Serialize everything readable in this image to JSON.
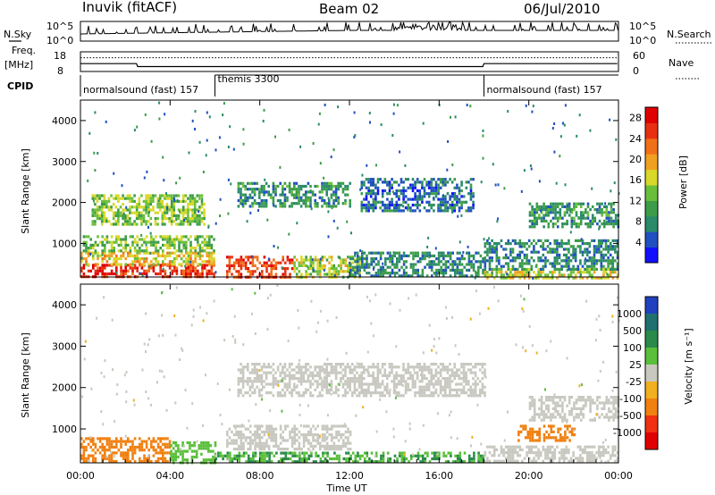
{
  "header": {
    "station": "Inuvik (fitACF)",
    "beam": "Beam 02",
    "date": "06/Jul/2010"
  },
  "panels": {
    "nsky_label": "N.Sky",
    "nsearch_label": "N.Search",
    "nsky_ticks": [
      "10^5",
      "10^0"
    ],
    "nsearch_ticks": [
      "10^5",
      "10^0"
    ],
    "freq_label": "Freq.",
    "freq_unit": "[MHz]",
    "freq_ticks": [
      "18",
      "8"
    ],
    "nave_label": "Nave",
    "nave_ticks": [
      "60",
      "0"
    ],
    "cpid_label": "CPID",
    "cpid_segments": [
      {
        "name": "normalsound (fast) 157",
        "start_hour": 0,
        "end_hour": 6
      },
      {
        "name": "themis 3300",
        "start_hour": 6,
        "end_hour": 18
      },
      {
        "name": "normalsound (fast) 157",
        "start_hour": 18,
        "end_hour": 24
      }
    ]
  },
  "chart_data": [
    {
      "type": "heatmap",
      "quantity": "power",
      "ylabel": "Slant Range [km]",
      "xlabel": "",
      "xlim": [
        0,
        24
      ],
      "ylim": [
        180,
        4500
      ],
      "yticks": [
        "1000",
        "2000",
        "3000",
        "4000"
      ],
      "colorbar": {
        "label": "Power [dB]",
        "ticks": [
          "4",
          "8",
          "12",
          "16",
          "20",
          "24",
          "28"
        ],
        "range": [
          0,
          30
        ],
        "colors": [
          "#1010ff",
          "#2050c0",
          "#2a8a6a",
          "#3c9c48",
          "#6abf3a",
          "#d8d82a",
          "#f0a020",
          "#f07018",
          "#e83010",
          "#e00000"
        ]
      },
      "regions": [
        {
          "x": [
            0.0,
            6.0
          ],
          "y": [
            180,
            500
          ],
          "value": 26
        },
        {
          "x": [
            0.0,
            6.0
          ],
          "y": [
            500,
            800
          ],
          "value": 18
        },
        {
          "x": [
            0.0,
            6.0
          ],
          "y": [
            800,
            1200
          ],
          "value": 13
        },
        {
          "x": [
            0.5,
            5.5
          ],
          "y": [
            1500,
            2200
          ],
          "value": 14
        },
        {
          "x": [
            6.5,
            9.5
          ],
          "y": [
            180,
            700
          ],
          "value": 25
        },
        {
          "x": [
            9.5,
            12.5
          ],
          "y": [
            180,
            700
          ],
          "value": 15
        },
        {
          "x": [
            7.0,
            12.0
          ],
          "y": [
            1900,
            2500
          ],
          "value": 9
        },
        {
          "x": [
            12.0,
            18.0
          ],
          "y": [
            180,
            800
          ],
          "value": 8
        },
        {
          "x": [
            12.5,
            17.5
          ],
          "y": [
            1800,
            2600
          ],
          "value": 6
        },
        {
          "x": [
            18.0,
            24.0
          ],
          "y": [
            180,
            400
          ],
          "value": 16
        },
        {
          "x": [
            18.0,
            24.0
          ],
          "y": [
            400,
            1100
          ],
          "value": 8
        },
        {
          "x": [
            20.0,
            24.0
          ],
          "y": [
            1400,
            2000
          ],
          "value": 9
        }
      ]
    },
    {
      "type": "heatmap",
      "quantity": "velocity",
      "ylabel": "Slant Range [km]",
      "xlabel": "Time UT",
      "xlim": [
        0,
        24
      ],
      "ylim": [
        180,
        4500
      ],
      "xticks": [
        "00:00",
        "04:00",
        "08:00",
        "12:00",
        "16:00",
        "20:00",
        "00:00"
      ],
      "yticks": [
        "1000",
        "2000",
        "3000",
        "4000"
      ],
      "colorbar": {
        "label": "Velocity [m s⁻¹]",
        "ticks": [
          "1000",
          "500",
          "100",
          "25",
          "-25",
          "-100",
          "-500",
          "-1000"
        ],
        "colors": [
          "#2040c0",
          "#207070",
          "#2a8a4a",
          "#5abf3a",
          "#c8c8c0",
          "#f0b020",
          "#f08010",
          "#f03010",
          "#e00000"
        ]
      },
      "regions": [
        {
          "x": [
            0.0,
            4.0
          ],
          "y": [
            180,
            800
          ],
          "value": -300
        },
        {
          "x": [
            4.0,
            6.0
          ],
          "y": [
            180,
            700
          ],
          "value": 60
        },
        {
          "x": [
            6.0,
            18.0
          ],
          "y": [
            180,
            450
          ],
          "value": 100
        },
        {
          "x": [
            6.5,
            12.0
          ],
          "y": [
            500,
            1100
          ],
          "value": 0
        },
        {
          "x": [
            7.0,
            18.0
          ],
          "y": [
            1800,
            2600
          ],
          "value": 0
        },
        {
          "x": [
            18.0,
            24.0
          ],
          "y": [
            200,
            600
          ],
          "value": 0
        },
        {
          "x": [
            19.5,
            22.0
          ],
          "y": [
            750,
            1100
          ],
          "value": -300
        },
        {
          "x": [
            20.0,
            24.0
          ],
          "y": [
            1200,
            1800
          ],
          "value": 0
        }
      ]
    }
  ]
}
